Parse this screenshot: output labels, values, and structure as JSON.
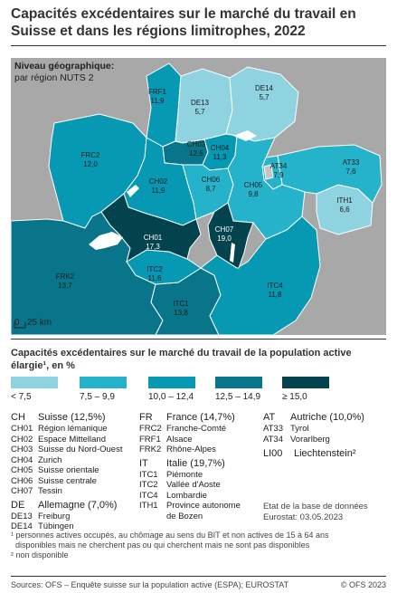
{
  "title": "Capacités excédentaires sur le marché du travail en Suisse et dans les régions limitrophes, 2022",
  "map": {
    "level_label": "Niveau géographique:",
    "level_value": "par région NUTS 2",
    "scale_label": "25 km",
    "scale_zero": "0",
    "regions": [
      {
        "code": "FRF1",
        "value": "11,9",
        "class": 2
      },
      {
        "code": "DE13",
        "value": "5,7",
        "class": 0
      },
      {
        "code": "DE14",
        "value": "5,7",
        "class": 0
      },
      {
        "code": "FRC2",
        "value": "12,0",
        "class": 2
      },
      {
        "code": "CH03",
        "value": "12,5",
        "class": 3
      },
      {
        "code": "CH04",
        "value": "11,3",
        "class": 2
      },
      {
        "code": "AT34",
        "value": "7,9",
        "class": 1
      },
      {
        "code": "AT33",
        "value": "7,6",
        "class": 1
      },
      {
        "code": "CH02",
        "value": "11,9",
        "class": 2
      },
      {
        "code": "CH06",
        "value": "8,7",
        "class": 1
      },
      {
        "code": "CH05",
        "value": "9,8",
        "class": 1
      },
      {
        "code": "ITH1",
        "value": "6,6",
        "class": 0
      },
      {
        "code": "CH01",
        "value": "17,3",
        "class": 4
      },
      {
        "code": "CH07",
        "value": "19,0",
        "class": 4
      },
      {
        "code": "FRK2",
        "value": "13,7",
        "class": 3
      },
      {
        "code": "ITC2",
        "value": "11,6",
        "class": 2
      },
      {
        "code": "ITC4",
        "value": "11,8",
        "class": 2
      },
      {
        "code": "ITC1",
        "value": "13,8",
        "class": 3
      }
    ]
  },
  "legend": {
    "title": "Capacités excédentaires sur le marché du travail de la population active élargie¹, en %",
    "classes": [
      {
        "label": "< 7,5",
        "color": "#8fd3e0"
      },
      {
        "label": "7,5 – 9,9",
        "color": "#25b3cc"
      },
      {
        "label": "10,0 – 12,4",
        "color": "#0798b4"
      },
      {
        "label": "12,5 – 14,9",
        "color": "#08758a"
      },
      {
        "label": "≥ 15,0",
        "color": "#02434d"
      }
    ]
  },
  "countries": {
    "ch": {
      "code": "CH",
      "name": "Suisse (12,5%)",
      "items": [
        {
          "code": "CH01",
          "name": "Région lémanique"
        },
        {
          "code": "CH02",
          "name": "Espace Mittelland"
        },
        {
          "code": "CH03",
          "name": "Suisse du Nord-Ouest"
        },
        {
          "code": "CH04",
          "name": "Zurich"
        },
        {
          "code": "CH05",
          "name": "Suisse orientale"
        },
        {
          "code": "CH06",
          "name": "Suisse centrale"
        },
        {
          "code": "CH07",
          "name": "Tessin"
        }
      ]
    },
    "de": {
      "code": "DE",
      "name": "Allemagne (7,0%)",
      "items": [
        {
          "code": "DE13",
          "name": "Freiburg"
        },
        {
          "code": "DE14",
          "name": "Tübingen"
        }
      ]
    },
    "fr": {
      "code": "FR",
      "name": "France (14,7%)",
      "items": [
        {
          "code": "FRC2",
          "name": "Franche-Comté"
        },
        {
          "code": "FRF1",
          "name": "Alsace"
        },
        {
          "code": "FRK2",
          "name": "Rhône-Alpes"
        }
      ]
    },
    "it": {
      "code": "IT",
      "name": "Italie (19,7%)",
      "items": [
        {
          "code": "ITC1",
          "name": "Piémonte"
        },
        {
          "code": "ITC2",
          "name": "Vallée d'Aoste"
        },
        {
          "code": "ITC4",
          "name": "Lombardie"
        },
        {
          "code": "ITH1",
          "name": "Province autonome"
        },
        {
          "code": "",
          "name": "de Bozen"
        }
      ]
    },
    "at": {
      "code": "AT",
      "name": "Autriche (10,0%)",
      "items": [
        {
          "code": "AT33",
          "name": "Tyrol"
        },
        {
          "code": "AT34",
          "name": "Vorarlberg"
        }
      ]
    },
    "li": {
      "code": "LI00",
      "name": "Liechtenstein²"
    }
  },
  "status": {
    "line1": "Etat de la base de données",
    "line2": "Eurostat: 03.05.2023"
  },
  "notes": {
    "n1": "¹ personnes actives occupés, au chômage au sens du BIT et non actives de 15 à 64 ans",
    "n1b": "disponibles mais ne cherchent pas ou qui cherchent mais ne sont pas disponibles",
    "n2": "² non disponible"
  },
  "footer": {
    "sources": "Sources: OFS – Enquête suisse sur la population active (ESPA); EUROSTAT",
    "copyright": "© OFS 2023"
  }
}
